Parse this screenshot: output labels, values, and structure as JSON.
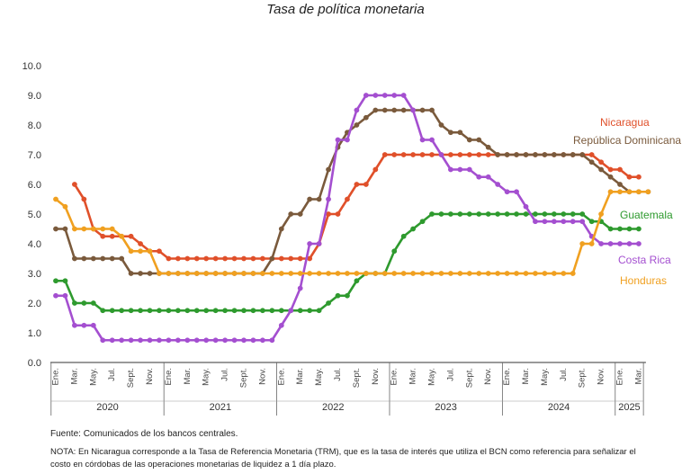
{
  "chart_data": {
    "type": "line",
    "title": "Tasa de política monetaria",
    "xlabel": "",
    "ylabel": "",
    "ylim": [
      0,
      10
    ],
    "yticks": [
      "0.0",
      "1.0",
      "2.0",
      "3.0",
      "4.0",
      "5.0",
      "6.0",
      "7.0",
      "8.0",
      "9.0",
      "10.0"
    ],
    "month_ticks": [
      "Ene.",
      "Mar.",
      "May.",
      "Jul.",
      "Sept.",
      "Nov."
    ],
    "years": [
      "2020",
      "2021",
      "2022",
      "2023",
      "2024",
      "2025"
    ],
    "x_start": "2020-01",
    "x_end": "2025-03",
    "grid": false,
    "legend": "inline labels at right end of each line",
    "series": [
      {
        "name": "Nicaragua",
        "color": "#e0502a",
        "start": "2020-03",
        "values": [
          6.0,
          5.5,
          4.5,
          4.25,
          4.25,
          4.25,
          4.25,
          4.0,
          3.75,
          3.75,
          3.5,
          3.5,
          3.5,
          3.5,
          3.5,
          3.5,
          3.5,
          3.5,
          3.5,
          3.5,
          3.5,
          3.5,
          3.5,
          3.5,
          3.5,
          3.5,
          4.0,
          5.0,
          5.0,
          5.5,
          6.0,
          6.0,
          6.5,
          7.0,
          7.0,
          7.0,
          7.0,
          7.0,
          7.0,
          7.0,
          7.0,
          7.0,
          7.0,
          7.0,
          7.0,
          7.0,
          7.0,
          7.0,
          7.0,
          7.0,
          7.0,
          7.0,
          7.0,
          7.0,
          7.0,
          7.0,
          6.75,
          6.5,
          6.5,
          6.25,
          6.25
        ]
      },
      {
        "name": "República Dominicana",
        "color": "#7a5a3c",
        "start": "2020-01",
        "values": [
          4.5,
          4.5,
          3.5,
          3.5,
          3.5,
          3.5,
          3.5,
          3.5,
          3.0,
          3.0,
          3.0,
          3.0,
          3.0,
          3.0,
          3.0,
          3.0,
          3.0,
          3.0,
          3.0,
          3.0,
          3.0,
          3.0,
          3.0,
          3.5,
          4.5,
          5.0,
          5.0,
          5.5,
          5.5,
          6.5,
          7.25,
          7.75,
          8.0,
          8.25,
          8.5,
          8.5,
          8.5,
          8.5,
          8.5,
          8.5,
          8.5,
          8.0,
          7.75,
          7.75,
          7.5,
          7.5,
          7.25,
          7.0,
          7.0,
          7.0,
          7.0,
          7.0,
          7.0,
          7.0,
          7.0,
          7.0,
          7.0,
          6.75,
          6.5,
          6.25,
          6.0,
          5.75,
          5.75,
          5.75
        ]
      },
      {
        "name": "Guatemala",
        "color": "#2e9a2e",
        "start": "2020-01",
        "values": [
          2.75,
          2.75,
          2.0,
          2.0,
          2.0,
          1.75,
          1.75,
          1.75,
          1.75,
          1.75,
          1.75,
          1.75,
          1.75,
          1.75,
          1.75,
          1.75,
          1.75,
          1.75,
          1.75,
          1.75,
          1.75,
          1.75,
          1.75,
          1.75,
          1.75,
          1.75,
          1.75,
          1.75,
          1.75,
          2.0,
          2.25,
          2.25,
          2.75,
          3.0,
          3.0,
          3.0,
          3.75,
          4.25,
          4.5,
          4.75,
          5.0,
          5.0,
          5.0,
          5.0,
          5.0,
          5.0,
          5.0,
          5.0,
          5.0,
          5.0,
          5.0,
          5.0,
          5.0,
          5.0,
          5.0,
          5.0,
          5.0,
          4.75,
          4.75,
          4.5,
          4.5,
          4.5,
          4.5
        ]
      },
      {
        "name": "Costa Rica",
        "color": "#a44fd0",
        "start": "2020-01",
        "values": [
          2.25,
          2.25,
          1.25,
          1.25,
          1.25,
          0.75,
          0.75,
          0.75,
          0.75,
          0.75,
          0.75,
          0.75,
          0.75,
          0.75,
          0.75,
          0.75,
          0.75,
          0.75,
          0.75,
          0.75,
          0.75,
          0.75,
          0.75,
          0.75,
          1.25,
          1.75,
          2.5,
          4.0,
          4.0,
          5.5,
          7.5,
          7.5,
          8.5,
          9.0,
          9.0,
          9.0,
          9.0,
          9.0,
          8.5,
          7.5,
          7.5,
          7.0,
          6.5,
          6.5,
          6.5,
          6.25,
          6.25,
          6.0,
          5.75,
          5.75,
          5.25,
          4.75,
          4.75,
          4.75,
          4.75,
          4.75,
          4.75,
          4.25,
          4.0,
          4.0,
          4.0,
          4.0,
          4.0
        ]
      },
      {
        "name": "Honduras",
        "color": "#f0a020",
        "start": "2020-01",
        "values": [
          5.5,
          5.25,
          4.5,
          4.5,
          4.5,
          4.5,
          4.5,
          4.25,
          3.75,
          3.75,
          3.75,
          3.0,
          3.0,
          3.0,
          3.0,
          3.0,
          3.0,
          3.0,
          3.0,
          3.0,
          3.0,
          3.0,
          3.0,
          3.0,
          3.0,
          3.0,
          3.0,
          3.0,
          3.0,
          3.0,
          3.0,
          3.0,
          3.0,
          3.0,
          3.0,
          3.0,
          3.0,
          3.0,
          3.0,
          3.0,
          3.0,
          3.0,
          3.0,
          3.0,
          3.0,
          3.0,
          3.0,
          3.0,
          3.0,
          3.0,
          3.0,
          3.0,
          3.0,
          3.0,
          3.0,
          3.0,
          4.0,
          4.0,
          5.0,
          5.75,
          5.75,
          5.75,
          5.75,
          5.75
        ]
      }
    ]
  },
  "footer": {
    "source": "Fuente: Comunicados de los bancos centrales.",
    "note": "NOTA: En Nicaragua corresponde a la Tasa de Referencia Monetaria (TRM), que es la tasa de interés que utiliza el BCN como referencia para señalizar el costo en córdobas de las operaciones monetarias de liquidez a 1 día plazo."
  }
}
